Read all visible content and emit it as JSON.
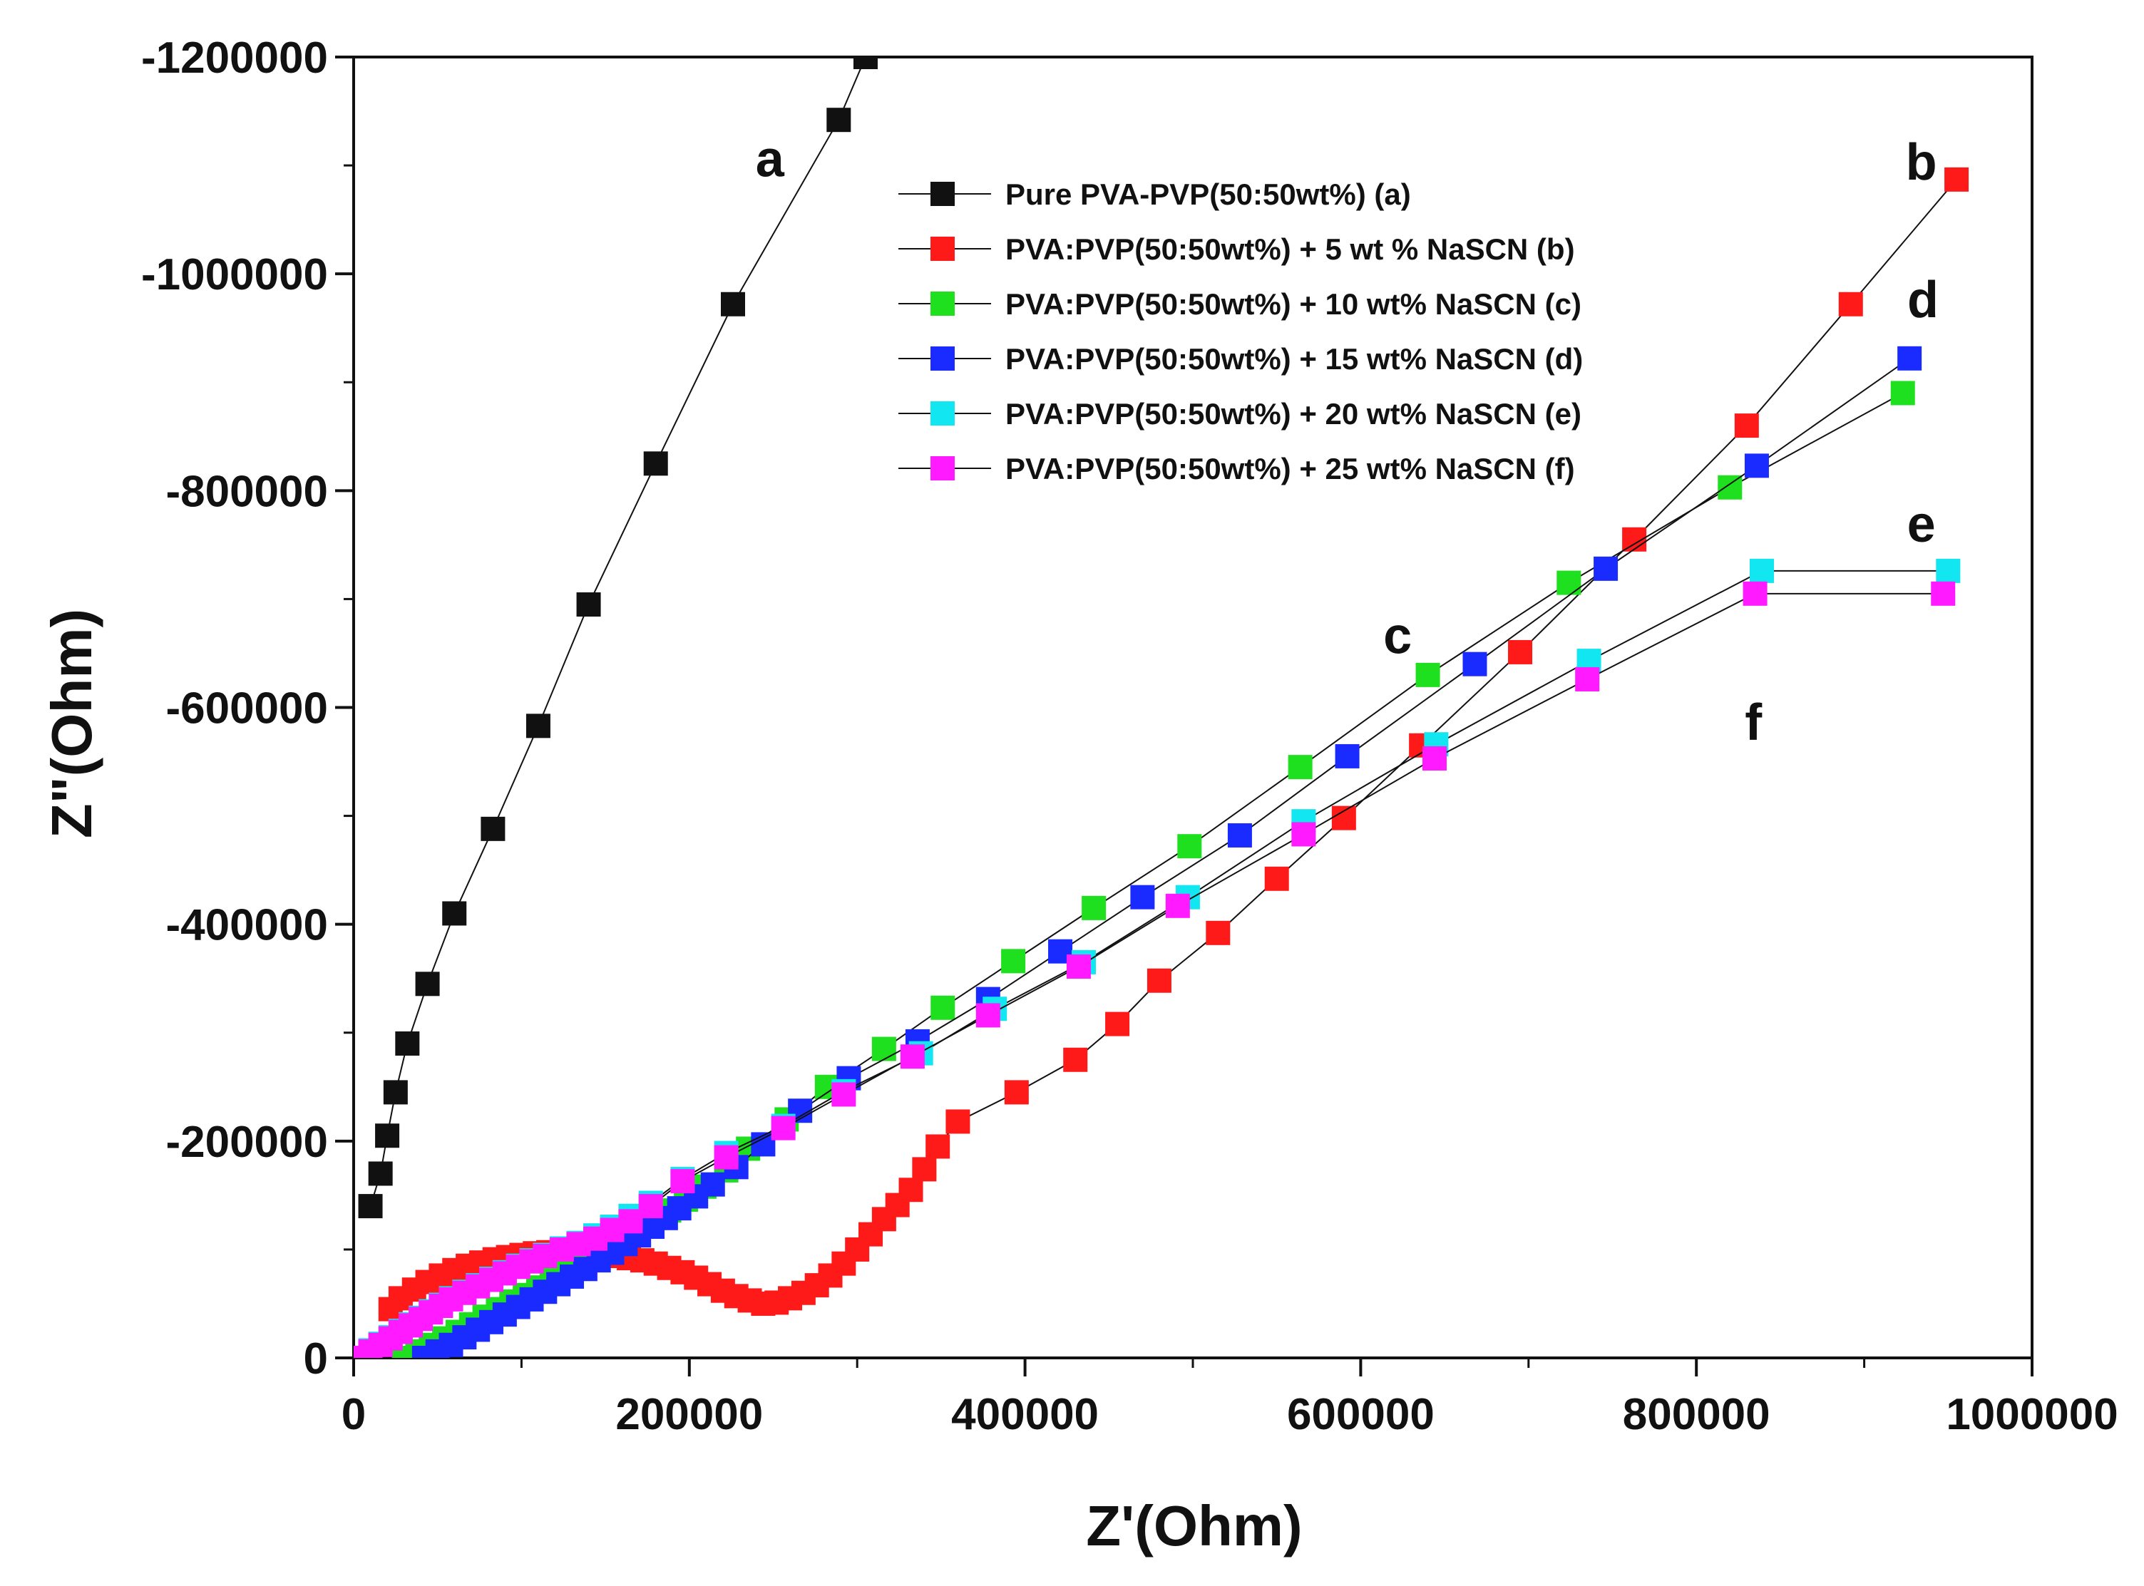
{
  "chart_data": {
    "type": "scatter",
    "title": "",
    "xlabel": "Z'(Ohm)",
    "ylabel": "Z\"(Ohm)",
    "xlim": [
      0,
      1000000
    ],
    "ylim": [
      0,
      1200000
    ],
    "grid": false,
    "legend_position": "top-right",
    "x_ticks": [
      {
        "value": 0,
        "label": "0"
      },
      {
        "value": 200000,
        "label": "200000"
      },
      {
        "value": 400000,
        "label": "400000"
      },
      {
        "value": 600000,
        "label": "600000"
      },
      {
        "value": 800000,
        "label": "800000"
      },
      {
        "value": 1000000,
        "label": "1000000"
      }
    ],
    "y_ticks": [
      {
        "value": 0,
        "label": "0"
      },
      {
        "value": 200000,
        "label": "-200000"
      },
      {
        "value": 400000,
        "label": "-400000"
      },
      {
        "value": 600000,
        "label": "-600000"
      },
      {
        "value": 800000,
        "label": "-800000"
      },
      {
        "value": 1000000,
        "label": "-1000000"
      },
      {
        "value": 1200000,
        "label": "-1200000"
      }
    ],
    "series": [
      {
        "id": "a",
        "name": "Pure PVA-PVP(50:50wt%) (a)",
        "color": "#111111",
        "curve_label": "a",
        "label_at": [
          248000,
          1090000
        ],
        "points": [
          [
            10000,
            140000
          ],
          [
            16000,
            170000
          ],
          [
            20000,
            205000
          ],
          [
            25000,
            245000
          ],
          [
            32000,
            290000
          ],
          [
            44000,
            345000
          ],
          [
            60000,
            410000
          ],
          [
            83000,
            488000
          ],
          [
            110000,
            583000
          ],
          [
            140000,
            695000
          ],
          [
            180000,
            825000
          ],
          [
            226000,
            972000
          ],
          [
            289000,
            1142000
          ],
          [
            305000,
            1200000
          ]
        ]
      },
      {
        "id": "b",
        "name": "PVA:PVP(50:50wt%) + 5 wt % NaSCN (b)",
        "color": "#ff1a1a",
        "curve_label": "b",
        "label_at": [
          934000,
          1087000
        ],
        "points": [
          [
            22000,
            45000
          ],
          [
            28000,
            55000
          ],
          [
            36000,
            63000
          ],
          [
            44000,
            70000
          ],
          [
            52000,
            76000
          ],
          [
            60000,
            81000
          ],
          [
            68000,
            85000
          ],
          [
            76000,
            88000
          ],
          [
            84000,
            91000
          ],
          [
            92000,
            93000
          ],
          [
            100000,
            95000
          ],
          [
            108000,
            96500
          ],
          [
            116000,
            97500
          ],
          [
            124000,
            98000
          ],
          [
            132000,
            98000
          ],
          [
            140000,
            97000
          ],
          [
            148000,
            96000
          ],
          [
            156000,
            94000
          ],
          [
            164000,
            92000
          ],
          [
            172000,
            90000
          ],
          [
            180000,
            87000
          ],
          [
            188000,
            83000
          ],
          [
            196000,
            79000
          ],
          [
            204000,
            74000
          ],
          [
            212000,
            68000
          ],
          [
            220000,
            62000
          ],
          [
            228000,
            57000
          ],
          [
            236000,
            53000
          ],
          [
            244000,
            50000
          ],
          [
            252000,
            51000
          ],
          [
            260000,
            55000
          ],
          [
            268000,
            60000
          ],
          [
            276000,
            67000
          ],
          [
            284000,
            76000
          ],
          [
            292000,
            87000
          ],
          [
            300000,
            100000
          ],
          [
            308000,
            114000
          ],
          [
            316000,
            128000
          ],
          [
            324000,
            141000
          ],
          [
            332000,
            155000
          ],
          [
            340000,
            174000
          ],
          [
            348000,
            195000
          ],
          [
            360000,
            218000
          ],
          [
            395000,
            245000
          ],
          [
            430000,
            275000
          ],
          [
            455000,
            308000
          ],
          [
            480000,
            348000
          ],
          [
            515000,
            392000
          ],
          [
            550000,
            442000
          ],
          [
            590000,
            498000
          ],
          [
            636000,
            565000
          ],
          [
            695000,
            651000
          ],
          [
            763000,
            755000
          ],
          [
            830000,
            860000
          ],
          [
            892000,
            972000
          ],
          [
            955000,
            1087000
          ]
        ]
      },
      {
        "id": "c",
        "name": "PVA:PVP(50:50wt%) + 10 wt% NaSCN (c)",
        "color": "#1ee01e",
        "curve_label": "c",
        "label_at": [
          622000,
          650000
        ],
        "points": [
          [
            30000,
            0
          ],
          [
            38000,
            6000
          ],
          [
            46000,
            12000
          ],
          [
            54000,
            18000
          ],
          [
            62000,
            24000
          ],
          [
            70000,
            31000
          ],
          [
            78000,
            38000
          ],
          [
            86000,
            45000
          ],
          [
            94000,
            52000
          ],
          [
            102000,
            58000
          ],
          [
            110000,
            65000
          ],
          [
            118000,
            72000
          ],
          [
            126000,
            79000
          ],
          [
            134000,
            86000
          ],
          [
            142000,
            93000
          ],
          [
            150000,
            101000
          ],
          [
            158000,
            109000
          ],
          [
            168000,
            117000
          ],
          [
            178000,
            126000
          ],
          [
            188000,
            136000
          ],
          [
            198000,
            146000
          ],
          [
            209000,
            158000
          ],
          [
            222000,
            173000
          ],
          [
            235000,
            193000
          ],
          [
            258000,
            220000
          ],
          [
            282000,
            250000
          ],
          [
            316000,
            285000
          ],
          [
            351000,
            323000
          ],
          [
            393000,
            366000
          ],
          [
            441000,
            415000
          ],
          [
            498000,
            472000
          ],
          [
            564000,
            545000
          ],
          [
            640000,
            630000
          ],
          [
            724000,
            715000
          ],
          [
            820000,
            803000
          ],
          [
            923000,
            890000
          ]
        ]
      },
      {
        "id": "d",
        "name": "PVA:PVP(50:50wt%) + 15 wt% NaSCN (d)",
        "color": "#1a2bff",
        "curve_label": "d",
        "label_at": [
          935000,
          960000
        ],
        "points": [
          [
            42000,
            0
          ],
          [
            50000,
            6000
          ],
          [
            58000,
            12000
          ],
          [
            66000,
            19000
          ],
          [
            74000,
            26000
          ],
          [
            82000,
            33000
          ],
          [
            90000,
            40000
          ],
          [
            98000,
            47000
          ],
          [
            106000,
            54000
          ],
          [
            114000,
            61000
          ],
          [
            122000,
            68000
          ],
          [
            130000,
            75000
          ],
          [
            138000,
            82000
          ],
          [
            146000,
            90000
          ],
          [
            154000,
            97000
          ],
          [
            162000,
            105000
          ],
          [
            170000,
            113000
          ],
          [
            178000,
            121000
          ],
          [
            186000,
            129000
          ],
          [
            194000,
            138000
          ],
          [
            204000,
            149000
          ],
          [
            214000,
            160000
          ],
          [
            228000,
            176000
          ],
          [
            244000,
            197000
          ],
          [
            266000,
            228000
          ],
          [
            295000,
            258000
          ],
          [
            336000,
            292000
          ],
          [
            378000,
            331000
          ],
          [
            421000,
            375000
          ],
          [
            470000,
            425000
          ],
          [
            528000,
            482000
          ],
          [
            592000,
            555000
          ],
          [
            668000,
            640000
          ],
          [
            746000,
            728000
          ],
          [
            836000,
            823000
          ],
          [
            927000,
            922000
          ]
        ]
      },
      {
        "id": "e",
        "name": "PVA:PVP(50:50wt%) + 20 wt% NaSCN (e)",
        "color": "#12e6f0",
        "curve_label": "e",
        "label_at": [
          934000,
          753000
        ],
        "points": [
          [
            4000,
            0
          ],
          [
            10000,
            7000
          ],
          [
            16000,
            13000
          ],
          [
            22000,
            19000
          ],
          [
            28000,
            25000
          ],
          [
            34000,
            31000
          ],
          [
            40000,
            37000
          ],
          [
            46000,
            43000
          ],
          [
            52000,
            49000
          ],
          [
            58000,
            55000
          ],
          [
            66000,
            61000
          ],
          [
            74000,
            67000
          ],
          [
            82000,
            73000
          ],
          [
            90000,
            79000
          ],
          [
            98000,
            85000
          ],
          [
            106000,
            90000
          ],
          [
            114000,
            95000
          ],
          [
            124000,
            101000
          ],
          [
            134000,
            106000
          ],
          [
            144000,
            113000
          ],
          [
            154000,
            121000
          ],
          [
            165000,
            131000
          ],
          [
            177000,
            143000
          ],
          [
            196000,
            165000
          ],
          [
            222000,
            189000
          ],
          [
            256000,
            214000
          ],
          [
            292000,
            246000
          ],
          [
            338000,
            281000
          ],
          [
            382000,
            322000
          ],
          [
            435000,
            365000
          ],
          [
            497000,
            425000
          ],
          [
            566000,
            495000
          ],
          [
            645000,
            566000
          ],
          [
            736000,
            643000
          ],
          [
            839000,
            726000
          ],
          [
            950000,
            726000
          ]
        ]
      },
      {
        "id": "f",
        "name": "PVA:PVP(50:50wt%) + 25 wt% NaSCN (f)",
        "color": "#ff1aff",
        "curve_label": "f",
        "label_at": [
          834000,
          570000
        ],
        "points": [
          [
            4000,
            0
          ],
          [
            10000,
            6000
          ],
          [
            16000,
            12000
          ],
          [
            22000,
            18000
          ],
          [
            28000,
            24000
          ],
          [
            34000,
            30000
          ],
          [
            40000,
            36000
          ],
          [
            46000,
            42000
          ],
          [
            52000,
            48000
          ],
          [
            58000,
            54000
          ],
          [
            66000,
            60000
          ],
          [
            74000,
            66000
          ],
          [
            82000,
            72000
          ],
          [
            90000,
            78000
          ],
          [
            98000,
            84000
          ],
          [
            106000,
            89000
          ],
          [
            114000,
            94000
          ],
          [
            124000,
            100000
          ],
          [
            134000,
            105000
          ],
          [
            144000,
            110000
          ],
          [
            154000,
            118000
          ],
          [
            165000,
            126000
          ],
          [
            177000,
            140000
          ],
          [
            196000,
            163000
          ],
          [
            222000,
            185000
          ],
          [
            256000,
            212000
          ],
          [
            292000,
            243000
          ],
          [
            333000,
            278000
          ],
          [
            378000,
            316000
          ],
          [
            432000,
            361000
          ],
          [
            491000,
            417000
          ],
          [
            566000,
            483000
          ],
          [
            644000,
            553000
          ],
          [
            735000,
            626000
          ],
          [
            835000,
            705000
          ],
          [
            947000,
            705000
          ]
        ]
      }
    ]
  }
}
